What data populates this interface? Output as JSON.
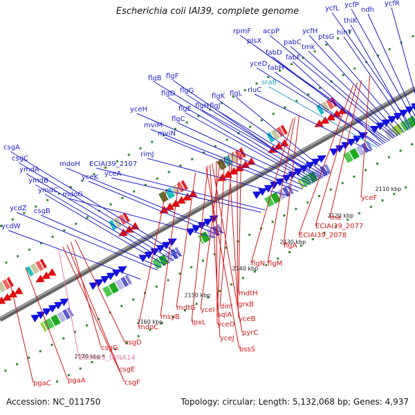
{
  "title": "Escherichia coli IAI39, complete genome",
  "footer": {
    "accession": "Accession: NC_011750",
    "stats": "Topology: circular; Length: 5,132,068 bp; Genes: 4,937"
  },
  "colors": {
    "forward_label": "#1a1acc",
    "reverse_label": "#d41414",
    "rna_label": "#e87aa8",
    "srna_label": "#2aa0c8",
    "backbone": "#808080",
    "tick": "#2a8a2a"
  },
  "ticks": [
    "2100 kbp",
    "2110 kbp",
    "2120 kbp",
    "2130 kbp",
    "2140 kbp",
    "2150 kbp",
    "2160 kbp",
    "2170 kbp"
  ],
  "forward_labels": [
    "ycfR",
    "ndh",
    "ycfP",
    "ycfL",
    "thiK",
    "hinT",
    "ptsG",
    "ycfH",
    "tmk",
    "pabC",
    "acpP",
    "rpmF",
    "plsX",
    "fabD",
    "fabF",
    "yceD",
    "fabH",
    "sraB",
    "rluC",
    "flgL",
    "flgK",
    "flgJ",
    "flgH",
    "flgG",
    "flgF",
    "flgB",
    "flgD",
    "flgE",
    "flgC",
    "yceH",
    "mviM",
    "mviN",
    "rimJ",
    "ECIAI39_2107",
    "yceA",
    "mdoH",
    "yceK",
    "mdoG",
    "csgA",
    "csgC",
    "ymdA",
    "ymdB",
    "ymdC",
    "csgB",
    "ycdZ",
    "ycdW"
  ],
  "reverse_labels": [
    "yceF",
    "rne",
    "ECIAI39_2077",
    "ECIAI39_2078",
    "flgA",
    "flgM",
    "flgN",
    "mdtH",
    "grxB",
    "dinI",
    "yceB",
    "sqlA",
    "yceI",
    "yceO",
    "pyrC",
    "yceJ",
    "lpxL",
    "bssS",
    "mdtG",
    "msyB",
    "mdoC",
    "csgD",
    "csgG",
    "ECIAI39_tRNA14",
    "csgE",
    "csgF",
    "pgaA",
    "pgaC"
  ]
}
